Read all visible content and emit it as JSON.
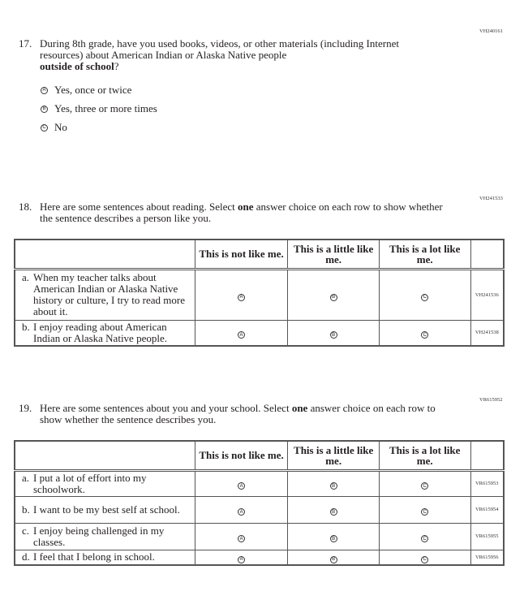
{
  "q17": {
    "code": "VH240161",
    "number": "17.",
    "text_plain": "During 8th grade, have you used books, videos, or other materials (including Internet resources) about American Indian or Alaska Native people",
    "text_bold": "outside of school",
    "text_end": "?",
    "options": [
      {
        "letter": "A",
        "label": "Yes, once or twice"
      },
      {
        "letter": "B",
        "label": "Yes, three or more times"
      },
      {
        "letter": "C",
        "label": "No"
      }
    ]
  },
  "q18": {
    "code": "VH241533",
    "number": "18.",
    "text_a": "Here are some sentences about reading. Select ",
    "text_bold": "one",
    "text_b": " answer choice on each row to show whether the sentence describes a person like you.",
    "columns": [
      "This is not like me.",
      "This is a little like me.",
      "This is a lot like me."
    ],
    "rows": [
      {
        "letter": "a.",
        "text": "When my teacher talks about American Indian or Alaska Native history or culture, I try to read more about it.",
        "code": "VH241536"
      },
      {
        "letter": "b.",
        "text": "I enjoy reading about American Indian or Alaska Native people.",
        "code": "VH241538"
      }
    ]
  },
  "q19": {
    "code": "VR615952",
    "number": "19.",
    "text_a": "Here are some sentences about you and your school. Select ",
    "text_bold": "one",
    "text_b": " answer choice on each row to show whether the sentence describes you.",
    "columns": [
      "This is not like me.",
      "This is a little like me.",
      "This is a lot like me."
    ],
    "rows": [
      {
        "letter": "a.",
        "text": "I put a lot of effort into my schoolwork.",
        "code": "VR615953"
      },
      {
        "letter": "b.",
        "text": "I want to be my best self at school.",
        "code": "VR615954"
      },
      {
        "letter": "c.",
        "text": "I enjoy being challenged in my classes.",
        "code": "VR615955"
      },
      {
        "letter": "d.",
        "text": "I feel that I belong in school.",
        "code": "VR615956"
      }
    ]
  },
  "bubble_letters": [
    "A",
    "B",
    "C"
  ]
}
